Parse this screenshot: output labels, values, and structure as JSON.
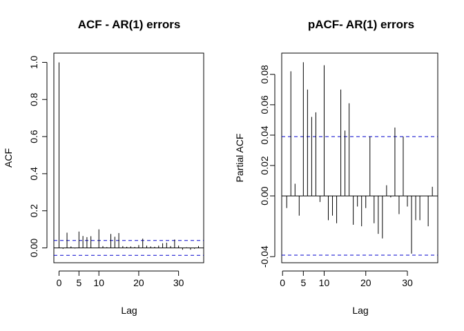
{
  "chart_data": [
    {
      "type": "bar",
      "subtype": "acf",
      "title": "ACF - AR(1) errors",
      "xlabel": "Lag",
      "ylabel": "ACF",
      "xlim": [
        -1.3,
        36.3
      ],
      "ylim": [
        -0.08,
        1.05
      ],
      "x_ticks": [
        0,
        5,
        10,
        20,
        30
      ],
      "y_ticks": [
        0.0,
        0.2,
        0.4,
        0.6,
        0.8,
        1.0
      ],
      "confidence_bounds": [
        0.04,
        -0.04
      ],
      "grid": false,
      "x": [
        0,
        1,
        2,
        3,
        4,
        5,
        6,
        7,
        8,
        9,
        10,
        11,
        12,
        13,
        14,
        15,
        16,
        17,
        18,
        19,
        20,
        21,
        22,
        23,
        24,
        25,
        26,
        27,
        28,
        29,
        30,
        31,
        32,
        33,
        34,
        35
      ],
      "values": [
        1.0,
        -0.005,
        0.082,
        0.008,
        -0.003,
        0.088,
        0.064,
        0.058,
        0.063,
        -0.002,
        0.1,
        0.01,
        0.004,
        0.075,
        0.06,
        0.08,
        0.01,
        0.006,
        0.008,
        0.005,
        0.015,
        0.05,
        0.012,
        0.008,
        0.006,
        0.012,
        0.025,
        0.028,
        0.01,
        0.045,
        0.012,
        -0.01,
        0.003,
        -0.01,
        -0.005,
        0.01
      ],
      "colors": {
        "bars": "#000000",
        "bounds": "#0000cc"
      }
    },
    {
      "type": "bar",
      "subtype": "pacf",
      "title": "pACF- AR(1) errors",
      "xlabel": "Lag",
      "ylabel": "Partial ACF",
      "xlim": [
        -0.2,
        37.3
      ],
      "ylim": [
        -0.044,
        0.094
      ],
      "x_ticks": [
        0,
        5,
        10,
        20,
        30
      ],
      "y_ticks": [
        -0.04,
        0.0,
        0.02,
        0.04,
        0.06,
        0.08
      ],
      "confidence_bounds": [
        0.039,
        -0.039
      ],
      "grid": false,
      "x": [
        1,
        2,
        3,
        4,
        5,
        6,
        7,
        8,
        9,
        10,
        11,
        12,
        13,
        14,
        15,
        16,
        17,
        18,
        19,
        20,
        21,
        22,
        23,
        24,
        25,
        26,
        27,
        28,
        29,
        30,
        31,
        32,
        33,
        34,
        35,
        36
      ],
      "values": [
        -0.008,
        0.082,
        0.008,
        -0.013,
        0.088,
        0.07,
        0.052,
        0.055,
        -0.004,
        0.086,
        -0.016,
        -0.013,
        -0.018,
        0.07,
        0.043,
        0.061,
        -0.019,
        -0.007,
        -0.02,
        -0.008,
        0.039,
        -0.018,
        -0.025,
        -0.028,
        0.007,
        -0.001,
        0.045,
        -0.012,
        0.039,
        -0.007,
        -0.038,
        -0.016,
        -0.016,
        0.0,
        -0.02,
        0.006
      ],
      "colors": {
        "bars": "#000000",
        "bounds": "#0000cc"
      }
    }
  ]
}
